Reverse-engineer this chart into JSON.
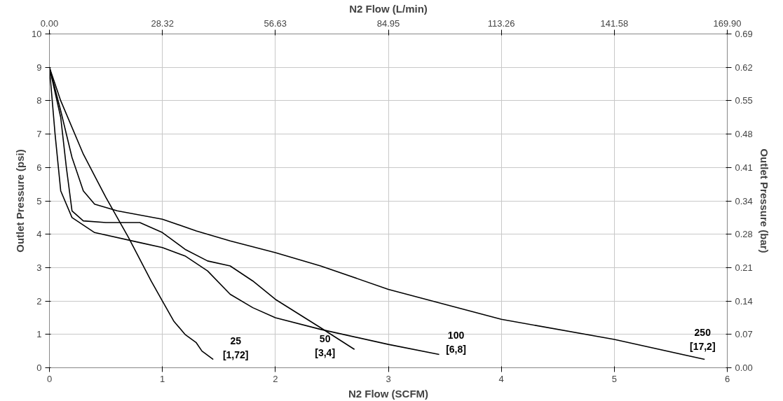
{
  "chart_data": {
    "type": "line",
    "xlabel": "N2 Flow (SCFM)",
    "ylabel": "Outlet Pressure (psi)",
    "y2label": "Outlet Pressure (bar)",
    "x2label": "N2 Flow (L/min)",
    "xlim": [
      0,
      6
    ],
    "xticks": [
      0,
      1,
      2,
      3,
      4,
      5,
      6
    ],
    "ylim": [
      0,
      10
    ],
    "yticks": [
      0,
      1,
      2,
      3,
      4,
      5,
      6,
      7,
      8,
      9,
      10
    ],
    "y2lim": [
      0,
      0.6895
    ],
    "y2ticks": [
      {
        "value": 0,
        "label": "0.00"
      },
      {
        "value": 0.06895,
        "label": "0.07"
      },
      {
        "value": 0.1379,
        "label": "0.14"
      },
      {
        "value": 0.20685,
        "label": "0.21"
      },
      {
        "value": 0.2758,
        "label": "0.28"
      },
      {
        "value": 0.34475,
        "label": "0.34"
      },
      {
        "value": 0.4137,
        "label": "0.41"
      },
      {
        "value": 0.48265,
        "label": "0.48"
      },
      {
        "value": 0.5516,
        "label": "0.55"
      },
      {
        "value": 0.62055,
        "label": "0.62"
      },
      {
        "value": 0.6895,
        "label": "0.69"
      }
    ],
    "x2lim": [
      0,
      169.9
    ],
    "x2ticks": [
      {
        "value": 0,
        "label": "0.00"
      },
      28.32,
      56.63,
      84.95,
      113.26,
      141.58,
      {
        "value": 169.9,
        "label": "169.90"
      }
    ],
    "grid": true,
    "marker": "none",
    "line_style": "solid",
    "series": [
      {
        "name": "25 [1,72]",
        "color": "#000000",
        "x": [
          0,
          0.1,
          0.3,
          0.5,
          0.7,
          0.9,
          1.0,
          1.1,
          1.2,
          1.3,
          1.35,
          1.45
        ],
        "values": [
          9,
          8,
          6.4,
          5.1,
          3.9,
          2.6,
          2.0,
          1.4,
          1.0,
          0.75,
          0.5,
          0.25
        ]
      },
      {
        "name": "50 [3,4]",
        "color": "#000000",
        "x": [
          0,
          0.1,
          0.15,
          0.2,
          0.3,
          0.5,
          0.8,
          1.0,
          1.2,
          1.4,
          1.6,
          1.8,
          2.0,
          2.4,
          2.7
        ],
        "values": [
          9,
          7.5,
          6,
          4.7,
          4.4,
          4.35,
          4.35,
          4.05,
          3.55,
          3.2,
          3.05,
          2.6,
          2.05,
          1.2,
          0.55
        ]
      },
      {
        "name": "100 [6,8]",
        "color": "#000000",
        "x": [
          0,
          0.05,
          0.1,
          0.2,
          0.4,
          0.8,
          1.0,
          1.2,
          1.4,
          1.6,
          1.8,
          2.0,
          2.4,
          3.0,
          3.45
        ],
        "values": [
          9,
          7,
          5.3,
          4.5,
          4.05,
          3.75,
          3.6,
          3.35,
          2.9,
          2.2,
          1.8,
          1.5,
          1.15,
          0.7,
          0.4
        ]
      },
      {
        "name": "250 [17,2]",
        "color": "#000000",
        "x": [
          0,
          0.1,
          0.2,
          0.3,
          0.4,
          0.6,
          1.0,
          1.3,
          1.6,
          2.0,
          2.4,
          3.0,
          4.0,
          5.0,
          5.8
        ],
        "values": [
          9,
          7.7,
          6.3,
          5.3,
          4.9,
          4.7,
          4.45,
          4.1,
          3.8,
          3.45,
          3.05,
          2.35,
          1.45,
          0.85,
          0.25
        ]
      }
    ]
  }
}
